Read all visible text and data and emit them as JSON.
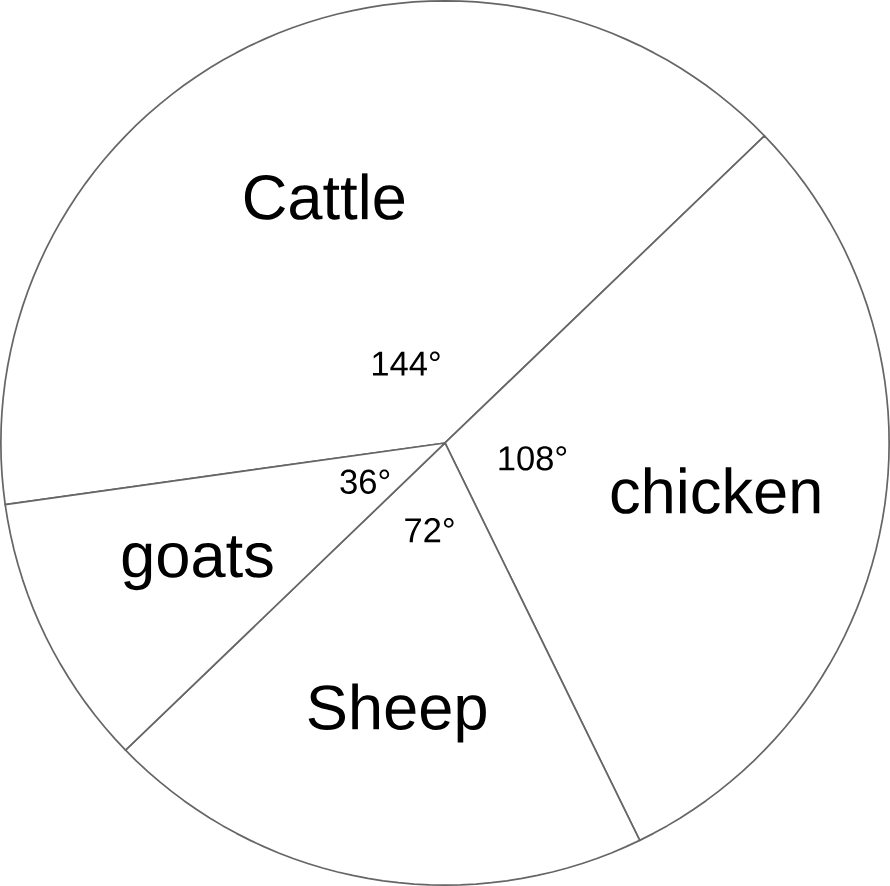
{
  "chart_data": {
    "type": "pie",
    "categories": [
      "Cattle",
      "chicken",
      "Sheep",
      "goats"
    ],
    "values": [
      144,
      108,
      72,
      36
    ],
    "colors": [
      "#ffffff",
      "#ffffff",
      "#ffffff",
      "#ffffff"
    ],
    "value_labels": [
      "144°",
      "108°",
      "72°",
      "36°"
    ]
  }
}
